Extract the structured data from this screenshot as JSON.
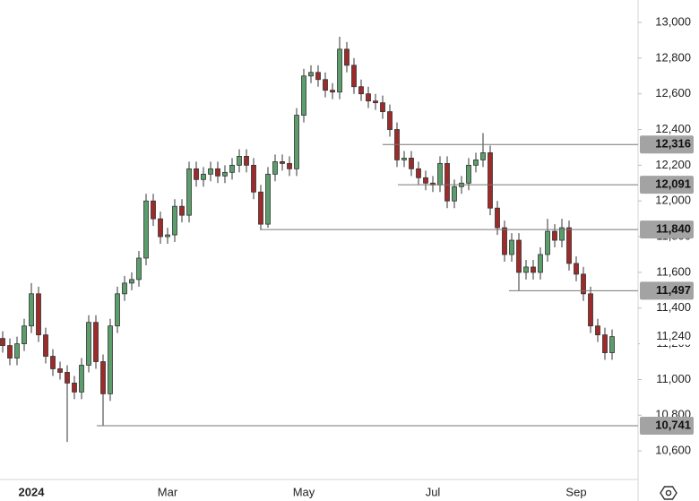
{
  "chart_data": {
    "type": "candlestick",
    "categories": [
      null,
      null,
      null,
      null,
      "2024",
      null,
      null,
      null,
      null,
      null,
      null,
      null,
      null,
      null,
      null,
      null,
      null,
      null,
      null,
      null,
      null,
      null,
      null,
      "Mar",
      null,
      null,
      null,
      null,
      null,
      null,
      null,
      null,
      null,
      null,
      null,
      null,
      null,
      null,
      null,
      null,
      null,
      null,
      "May",
      null,
      null,
      null,
      null,
      null,
      null,
      null,
      null,
      null,
      null,
      null,
      null,
      null,
      null,
      null,
      null,
      null,
      "Jul",
      null,
      null,
      null,
      null,
      null,
      null,
      null,
      null,
      null,
      null,
      null,
      null,
      null,
      null,
      null,
      null,
      null,
      null,
      null,
      "Sep",
      null,
      null,
      null,
      null,
      null
    ],
    "open": [
      11230,
      11190,
      11120,
      11200,
      11300,
      11480,
      11250,
      11130,
      11060,
      11040,
      10980,
      10930,
      11080,
      11320,
      11100,
      10920,
      11300,
      11480,
      11540,
      11560,
      11680,
      12000,
      11900,
      11800,
      11810,
      11970,
      11920,
      12180,
      12120,
      12150,
      12180,
      12140,
      12160,
      12200,
      12250,
      12200,
      12050,
      11870,
      12150,
      12220,
      12210,
      12180,
      12480,
      12700,
      12720,
      12680,
      12620,
      12610,
      12850,
      12760,
      12640,
      12600,
      12560,
      12550,
      12500,
      12400,
      12230,
      12240,
      12180,
      12130,
      12100,
      12090,
      12210,
      12000,
      12080,
      12100,
      12200,
      12230,
      12270,
      11960,
      11850,
      11700,
      11780,
      11600,
      11630,
      11600,
      11700,
      11830,
      11780,
      11850,
      11650,
      11590,
      11480,
      11300,
      11250,
      11150
    ],
    "high": [
      11270,
      11230,
      11240,
      11340,
      11540,
      11520,
      11290,
      11170,
      11100,
      11080,
      11020,
      11120,
      11360,
      11360,
      11140,
      11340,
      11520,
      11580,
      11600,
      11720,
      12040,
      12040,
      11940,
      11850,
      12010,
      12010,
      12220,
      12220,
      12190,
      12220,
      12220,
      12200,
      12240,
      12290,
      12290,
      12240,
      12090,
      12190,
      12260,
      12260,
      12250,
      12520,
      12740,
      12760,
      12760,
      12720,
      12660,
      12920,
      12890,
      12800,
      12680,
      12640,
      12600,
      12590,
      12540,
      12440,
      12280,
      12280,
      12220,
      12170,
      12140,
      12250,
      12250,
      12120,
      12140,
      12240,
      12270,
      12380,
      12310,
      12000,
      11890,
      11820,
      11820,
      11670,
      11670,
      11740,
      11900,
      11870,
      11900,
      11890,
      11690,
      11630,
      11520,
      11340,
      11290,
      11280
    ],
    "low": [
      11150,
      11080,
      11080,
      11160,
      11260,
      11210,
      11090,
      11020,
      11000,
      10650,
      10890,
      10890,
      11040,
      11060,
      10741,
      10880,
      11260,
      11440,
      11500,
      11520,
      11640,
      11860,
      11760,
      11760,
      11770,
      11880,
      11880,
      12080,
      12080,
      12110,
      12100,
      12100,
      12120,
      12160,
      12160,
      12010,
      11840,
      11850,
      12110,
      12170,
      12140,
      12140,
      12440,
      12660,
      12640,
      12580,
      12570,
      12570,
      12720,
      12600,
      12560,
      12520,
      12510,
      12460,
      12360,
      12190,
      12190,
      12140,
      12090,
      12060,
      12050,
      12050,
      11960,
      11960,
      12040,
      12060,
      12160,
      12190,
      11920,
      11810,
      11660,
      11660,
      11497,
      11560,
      11560,
      11560,
      11660,
      11740,
      11740,
      11610,
      11550,
      11440,
      11260,
      11210,
      11110,
      11110
    ],
    "close": [
      11190,
      11120,
      11200,
      11300,
      11480,
      11250,
      11130,
      11060,
      11040,
      10980,
      10930,
      11080,
      11320,
      11100,
      10920,
      11300,
      11480,
      11540,
      11560,
      11680,
      12000,
      11900,
      11800,
      11810,
      11970,
      11920,
      12180,
      12120,
      12150,
      12180,
      12140,
      12160,
      12200,
      12250,
      12200,
      12050,
      11870,
      12150,
      12220,
      12210,
      12180,
      12480,
      12700,
      12720,
      12680,
      12620,
      12610,
      12850,
      12760,
      12640,
      12600,
      12560,
      12550,
      12500,
      12400,
      12230,
      12240,
      12180,
      12130,
      12100,
      12090,
      12210,
      12000,
      12080,
      12100,
      12200,
      12230,
      12270,
      11960,
      11850,
      11700,
      11780,
      11600,
      11630,
      11600,
      11700,
      11830,
      11780,
      11850,
      11650,
      11590,
      11480,
      11300,
      11250,
      11150,
      11240
    ],
    "up_color": "#5b9e6b",
    "down_color": "#9e2a2a",
    "ylim": [
      10440,
      13125.5
    ],
    "yticks": [
      {
        "value": 10600,
        "label": "10,600"
      },
      {
        "value": 10800,
        "label": "10,800"
      },
      {
        "value": 11000,
        "label": "11,000"
      },
      {
        "value": 11200,
        "label": "11,200"
      },
      {
        "value": 11400,
        "label": "11,400"
      },
      {
        "value": 11600,
        "label": "11,600"
      },
      {
        "value": 11800,
        "label": "11,800"
      },
      {
        "value": 12000,
        "label": "12,000"
      },
      {
        "value": 12200,
        "label": "12,200"
      },
      {
        "value": 12400,
        "label": "12,400"
      },
      {
        "value": 12600,
        "label": "12,600"
      },
      {
        "value": 12800,
        "label": "12,800"
      },
      {
        "value": 13000,
        "label": "13,000"
      }
    ],
    "levels": [
      {
        "value": 12316,
        "label": "12,316"
      },
      {
        "value": 12091,
        "label": "12,091"
      },
      {
        "value": 11840,
        "label": "11,840"
      },
      {
        "value": 11497,
        "label": "11,497"
      },
      {
        "value": 10741,
        "label": "10,741"
      }
    ],
    "last_price": {
      "value": 11240,
      "label": "11,240"
    }
  }
}
